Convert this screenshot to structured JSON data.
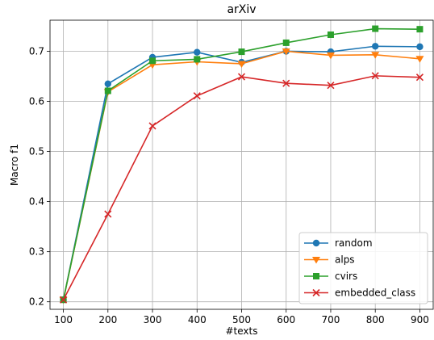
{
  "chart_data": {
    "type": "line",
    "title": "arXiv",
    "xlabel": "#texts",
    "ylabel": "Macro f1",
    "x": [
      100,
      200,
      300,
      400,
      500,
      600,
      700,
      800,
      900
    ],
    "xlim": [
      70,
      930
    ],
    "ylim": [
      0.185,
      0.762
    ],
    "xticks": [
      100,
      200,
      300,
      400,
      500,
      600,
      700,
      800,
      900
    ],
    "yticks": [
      0.2,
      0.3,
      0.4,
      0.5,
      0.6,
      0.7
    ],
    "ytick_labels": [
      "0.2",
      "0.3",
      "0.4",
      "0.5",
      "0.6",
      "0.7"
    ],
    "grid": true,
    "legend_position": "lower-right",
    "series": [
      {
        "name": "random",
        "color": "#1f77b4",
        "marker": "circle",
        "values": [
          0.204,
          0.635,
          0.688,
          0.698,
          0.678,
          0.7,
          0.699,
          0.71,
          0.709
        ]
      },
      {
        "name": "alps",
        "color": "#ff7f0e",
        "marker": "triangle-down",
        "values": [
          0.204,
          0.619,
          0.673,
          0.679,
          0.675,
          0.7,
          0.692,
          0.693,
          0.685
        ]
      },
      {
        "name": "cvirs",
        "color": "#2ca02c",
        "marker": "square",
        "values": [
          0.204,
          0.621,
          0.681,
          0.684,
          0.699,
          0.717,
          0.733,
          0.745,
          0.744
        ]
      },
      {
        "name": "embedded_class",
        "color": "#d62728",
        "marker": "x",
        "values": [
          0.204,
          0.375,
          0.551,
          0.611,
          0.649,
          0.636,
          0.632,
          0.651,
          0.648
        ]
      }
    ]
  }
}
